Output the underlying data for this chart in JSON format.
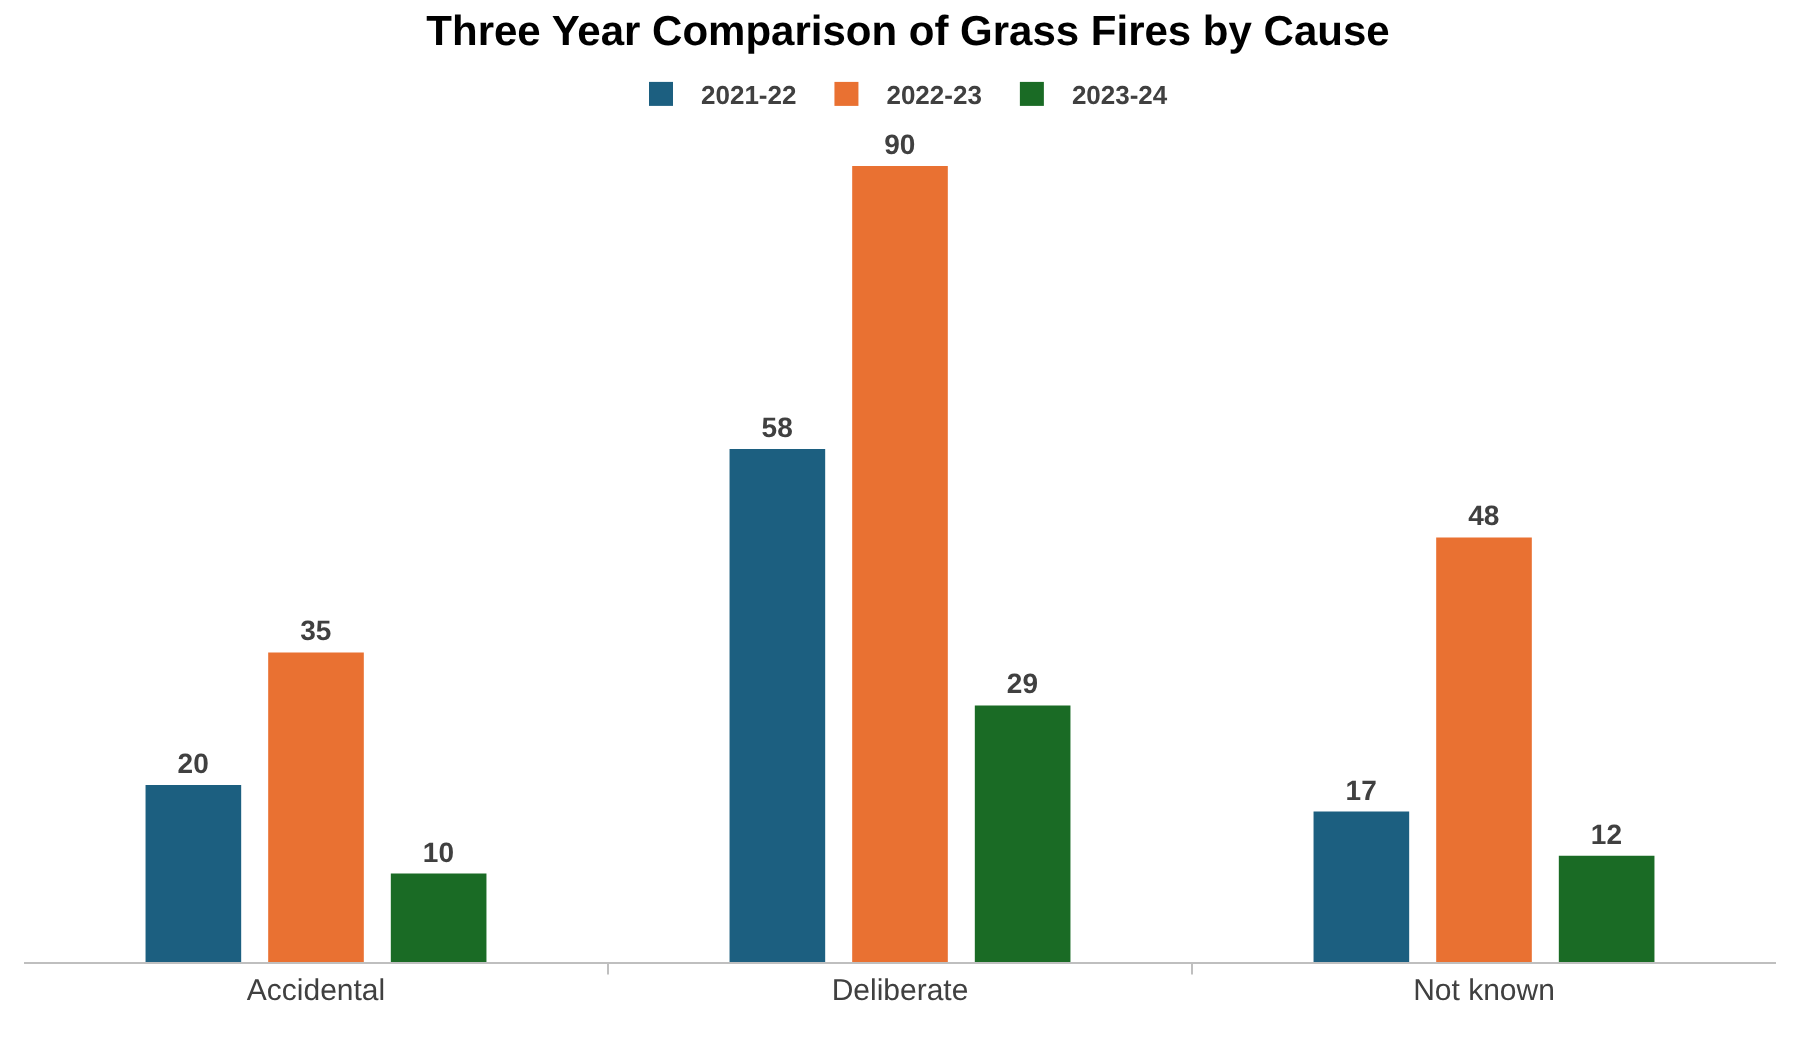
{
  "chart_data": {
    "type": "bar",
    "title": "Three Year Comparison of Grass Fires by Cause",
    "categories": [
      "Accidental",
      "Deliberate",
      "Not known"
    ],
    "series": [
      {
        "name": "2021-22",
        "color": "#1c5f80",
        "values": [
          20,
          58,
          17
        ]
      },
      {
        "name": "2022-23",
        "color": "#e97132",
        "values": [
          35,
          90,
          48
        ]
      },
      {
        "name": "2023-24",
        "color": "#1a6b25",
        "values": [
          10,
          29,
          12
        ]
      }
    ],
    "data_labels": true,
    "legend": "top"
  }
}
